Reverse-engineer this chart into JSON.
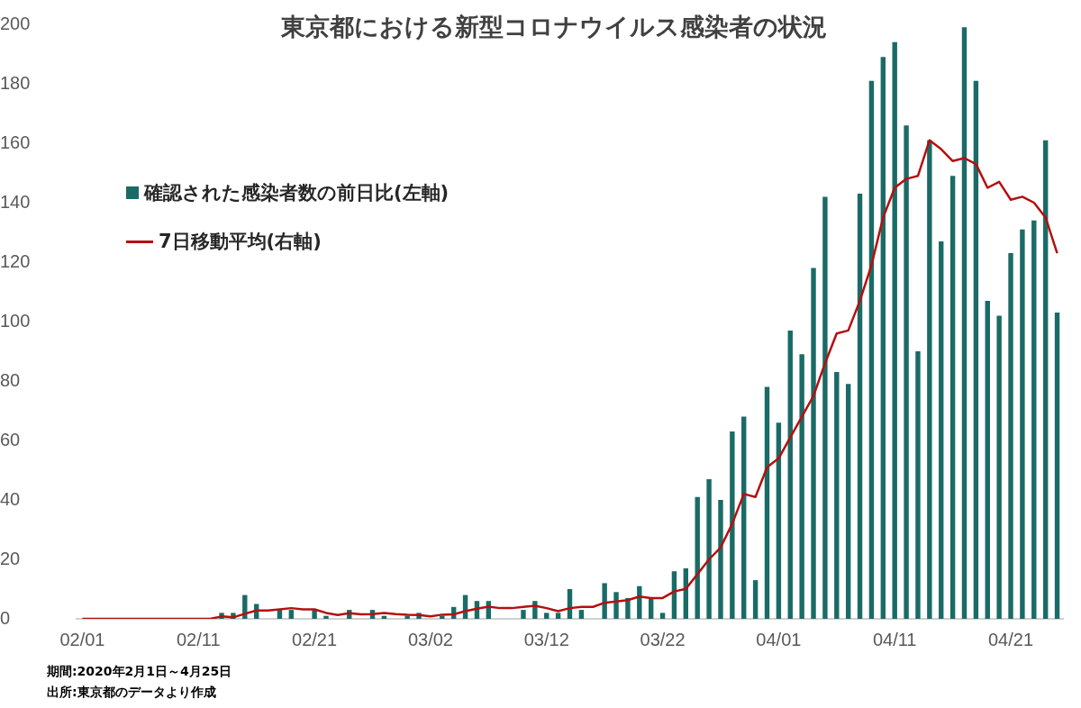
{
  "chart_data": {
    "type": "bar",
    "title": "東京都における新型コロナウイルス感染者の状況",
    "categories": [
      "02/01",
      null,
      null,
      null,
      null,
      null,
      null,
      null,
      null,
      null,
      "02/11",
      null,
      null,
      null,
      null,
      null,
      null,
      null,
      null,
      null,
      "02/21",
      null,
      null,
      null,
      null,
      null,
      null,
      null,
      null,
      null,
      "03/02",
      null,
      null,
      null,
      null,
      null,
      null,
      null,
      null,
      null,
      "03/12",
      null,
      null,
      null,
      null,
      null,
      null,
      null,
      null,
      null,
      "03/22",
      null,
      null,
      null,
      null,
      null,
      null,
      null,
      null,
      null,
      "04/01",
      null,
      null,
      null,
      null,
      null,
      null,
      null,
      null,
      null,
      "04/11",
      null,
      null,
      null,
      null,
      null,
      null,
      null,
      null,
      null,
      "04/21",
      null,
      null,
      null,
      null
    ],
    "series": [
      {
        "name": "確認された感染者数の前日比(左軸)",
        "color": "#1a6b66",
        "values": [
          0,
          0,
          0,
          0,
          0,
          0,
          0,
          0,
          0,
          0,
          0,
          0,
          2,
          2,
          8,
          5,
          0,
          3,
          3,
          0,
          3,
          1,
          0,
          3,
          0,
          3,
          1,
          0,
          1,
          2,
          0,
          1,
          4,
          8,
          6,
          6,
          0,
          0,
          3,
          6,
          2,
          2,
          10,
          3,
          0,
          12,
          9,
          7,
          11,
          7,
          2,
          16,
          17,
          41,
          47,
          40,
          63,
          68,
          13,
          78,
          66,
          97,
          89,
          118,
          142,
          83,
          79,
          143,
          181,
          189,
          194,
          166,
          90,
          161,
          127,
          149,
          199,
          181,
          107,
          102,
          123,
          131,
          134,
          161,
          103
        ]
      },
      {
        "name": "7日移動平均(右軸)",
        "type": "line",
        "color": "#b50f0f",
        "values": [
          0,
          0,
          0,
          0,
          0,
          0,
          0,
          0,
          0,
          0,
          0,
          0,
          0.8,
          0.5,
          1.7,
          2.8,
          2.8,
          3.2,
          3.6,
          3.2,
          3.2,
          2,
          1.3,
          1.9,
          1.5,
          1.6,
          2,
          1.6,
          1.4,
          1.3,
          0.8,
          1.4,
          1.5,
          2.6,
          3.4,
          4.1,
          3.6,
          3.6,
          4,
          4.4,
          3.6,
          2.6,
          3.6,
          4,
          4,
          5.4,
          5.8,
          6.3,
          7.5,
          7,
          7,
          9.2,
          10.1,
          15,
          20,
          24,
          32,
          42,
          41,
          51,
          54,
          61,
          68,
          75,
          86,
          96,
          97,
          107,
          119,
          135,
          145,
          148,
          149,
          161,
          158,
          154,
          155,
          153,
          145,
          147,
          141,
          142,
          140,
          135,
          123
        ]
      }
    ],
    "ylim": [
      0,
      200
    ],
    "yticks": [
      0,
      20,
      40,
      60,
      80,
      100,
      120,
      140,
      160,
      180,
      200
    ],
    "grid": false,
    "legend": "left",
    "annotations": [
      "期間:2020年2月1日～4月25日",
      "出所:東京都のデータより作成"
    ]
  }
}
